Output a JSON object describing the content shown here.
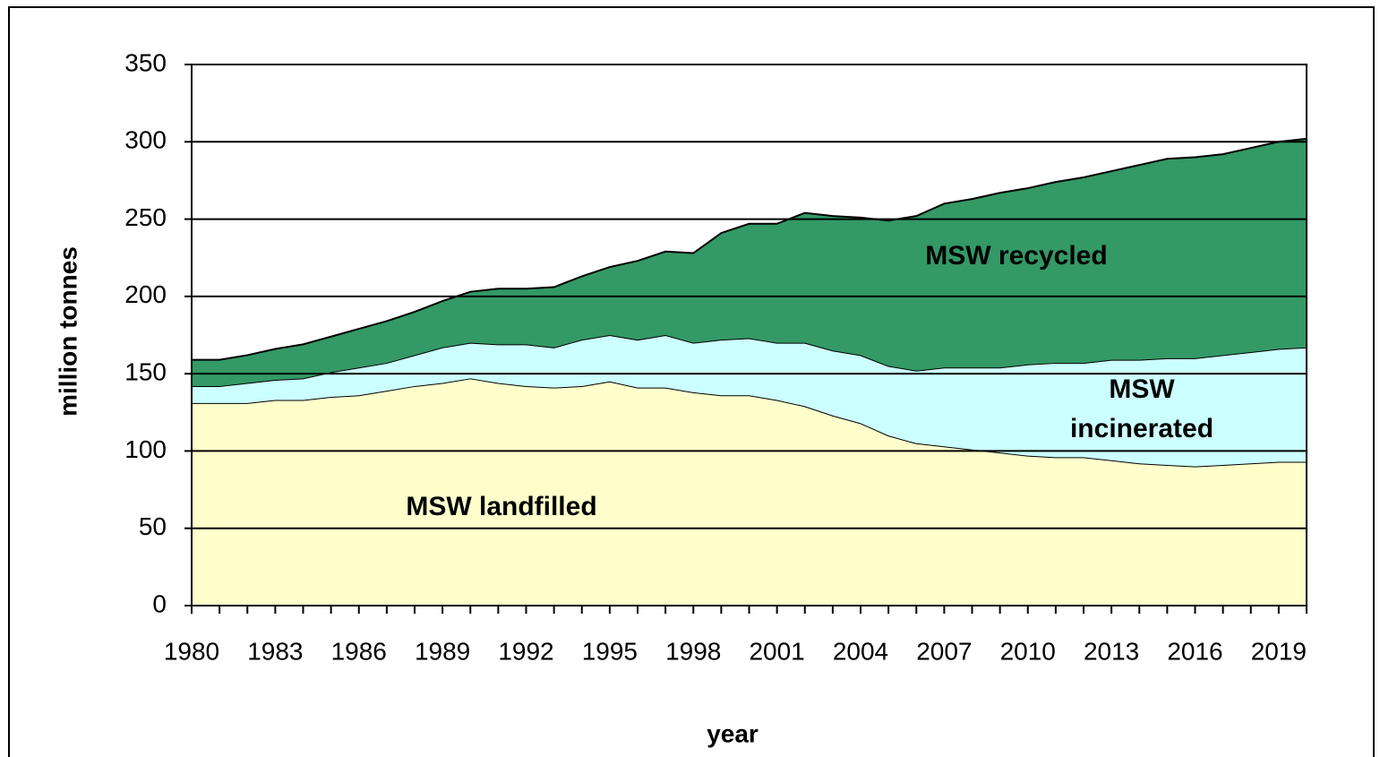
{
  "chart_data": {
    "type": "stacked_area",
    "x_label": "year",
    "y_label": "million tonnes",
    "categories": [
      "1980",
      null,
      null,
      "1983",
      null,
      null,
      "1986",
      null,
      null,
      "1989",
      null,
      null,
      "1992",
      null,
      null,
      "1995",
      null,
      null,
      "1998",
      null,
      null,
      "2001",
      null,
      null,
      "2004",
      null,
      null,
      "2007",
      null,
      null,
      "2010",
      null,
      null,
      "2013",
      null,
      null,
      "2016",
      null,
      null,
      "2019",
      null
    ],
    "series": [
      {
        "name": "MSW landfilled",
        "color": "#ffffcc",
        "values": [
          131,
          131,
          131,
          133,
          133,
          135,
          136,
          139,
          142,
          144,
          147,
          144,
          142,
          141,
          142,
          145,
          141,
          141,
          138,
          136,
          136,
          133,
          129,
          123,
          118,
          110,
          105,
          103,
          101,
          99,
          97,
          96,
          96,
          94,
          92,
          91,
          90,
          91,
          92,
          93,
          93
        ]
      },
      {
        "name": "MSW incinerated",
        "color": "#ccffff",
        "values": [
          11,
          11,
          13,
          13,
          14,
          16,
          18,
          18,
          20,
          23,
          23,
          25,
          27,
          26,
          30,
          30,
          31,
          34,
          32,
          36,
          37,
          37,
          41,
          42,
          44,
          45,
          47,
          51,
          53,
          55,
          59,
          61,
          61,
          65,
          67,
          69,
          70,
          71,
          72,
          73,
          74
        ]
      },
      {
        "name": "MSW recycled",
        "color": "#339966",
        "values": [
          17,
          17,
          18,
          20,
          22,
          23,
          25,
          27,
          28,
          30,
          33,
          36,
          36,
          39,
          41,
          44,
          51,
          54,
          58,
          69,
          74,
          77,
          84,
          87,
          89,
          94,
          100,
          106,
          109,
          113,
          114,
          117,
          120,
          122,
          126,
          129,
          130,
          130,
          132,
          134,
          135
        ]
      }
    ],
    "ylim": [
      0,
      350
    ],
    "yticks": [
      0,
      50,
      100,
      150,
      200,
      250,
      300,
      350
    ],
    "grid": true
  }
}
